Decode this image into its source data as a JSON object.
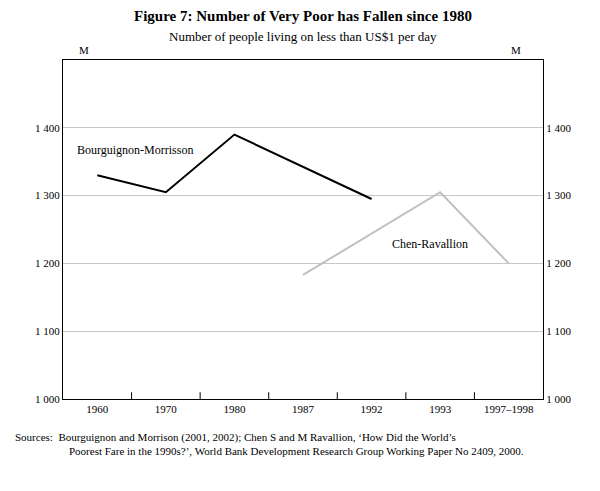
{
  "chart_data": {
    "type": "line",
    "title": "Figure 7: Number of Very Poor has Fallen since 1980",
    "subtitle": "Number of people living on less than US$1 per day",
    "ylabel": "M",
    "y2label": "M",
    "categories": [
      "1960",
      "1970",
      "1980",
      "1987",
      "1992",
      "1993",
      "1997–1998"
    ],
    "series": [
      {
        "name": "Bourguignon-Morrisson",
        "color": "#000000",
        "values": [
          1330,
          1305,
          1390,
          null,
          1295,
          null,
          null
        ]
      },
      {
        "name": "Chen-Ravallion",
        "color": "#c0c0c0",
        "values": [
          null,
          null,
          null,
          1183,
          null,
          1305,
          1200
        ]
      }
    ],
    "ylim": [
      1000,
      1500
    ],
    "yticks": [
      {
        "value": 1000,
        "label": "1 000"
      },
      {
        "value": 1100,
        "label": "1 100"
      },
      {
        "value": 1200,
        "label": "1 200"
      },
      {
        "value": 1300,
        "label": "1 300"
      },
      {
        "value": 1400,
        "label": "1 400"
      }
    ],
    "y2lim": [
      1000,
      1500
    ],
    "y2ticks": [
      {
        "value": 1000,
        "label": "1 000"
      },
      {
        "value": 1100,
        "label": "1 100"
      },
      {
        "value": 1200,
        "label": "1 200"
      },
      {
        "value": 1300,
        "label": "1 300"
      },
      {
        "value": 1400,
        "label": "1 400"
      }
    ],
    "grid": true,
    "source": [
      "Sources:  Bourguignon and Morrison (2001, 2002); Chen S and M Ravallion, ‘How Did the World’s",
      "Poorest Fare in the 1990s?’, World Bank Development Research Group Working Paper No 2409, 2000."
    ]
  }
}
